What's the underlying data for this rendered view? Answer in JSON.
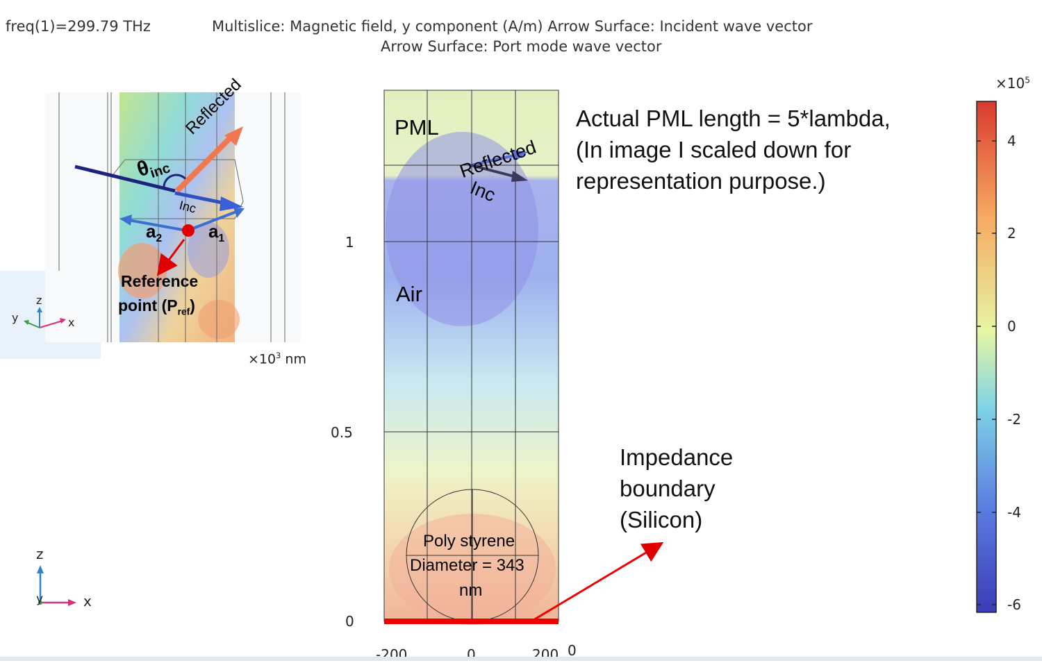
{
  "header": {
    "freq": "freq(1)=299.79 THz",
    "plot_line1": "Multislice: Magnetic field, y component (A/m)  Arrow Surface: Incident wave vector",
    "plot_line2": "Arrow Surface: Port mode wave vector"
  },
  "inset": {
    "theta_label": "θ",
    "theta_sub": "inc",
    "reflected_label": "Reflected",
    "inc_label": "Inc",
    "a2_label": "a",
    "a2_sub": "2",
    "a1_label": "a",
    "a1_sub": "1",
    "ref_line1": "Reference",
    "ref_line2_pre": "point (P",
    "ref_line2_sub": "ref",
    "ref_line2_post": ")",
    "unit_prefix": "×10",
    "unit_exp": "3",
    "unit": "nm"
  },
  "axes_triad_small": {
    "z": "z",
    "y": "y",
    "x": "x"
  },
  "axes_triad_large": {
    "z": "z",
    "y": "y",
    "x": "x"
  },
  "domain": {
    "pml_label": "PML",
    "air_label": "Air",
    "reflected_label": "Reflected",
    "inc_label": "Inc",
    "sphere_line1": "Poly styrene",
    "sphere_line2": "Diameter = 343",
    "sphere_line3": "nm",
    "y_ticks": [
      "1",
      "0.5",
      "0"
    ],
    "x_ticks": [
      "-200",
      "0",
      "200",
      "0"
    ]
  },
  "callouts": {
    "pml_note_line1": "Actual PML length = 5*lambda,",
    "pml_note_line2": "(In image I scaled down for",
    "pml_note_line3": "representation purpose.)",
    "impedance_line1": "Impedance",
    "impedance_line2": "boundary",
    "impedance_line3": "(Silicon)"
  },
  "colorbar": {
    "multiplier_prefix": "×10",
    "multiplier_exp": "5",
    "ticks": [
      "4",
      "2",
      "0",
      "-2",
      "-4",
      "-6"
    ],
    "range": [
      -6.2,
      4.8
    ],
    "colors": [
      "#3a3cb5",
      "#5a7be0",
      "#7fd3e6",
      "#e6f5a3",
      "#f6a860",
      "#d93a2f"
    ]
  }
}
